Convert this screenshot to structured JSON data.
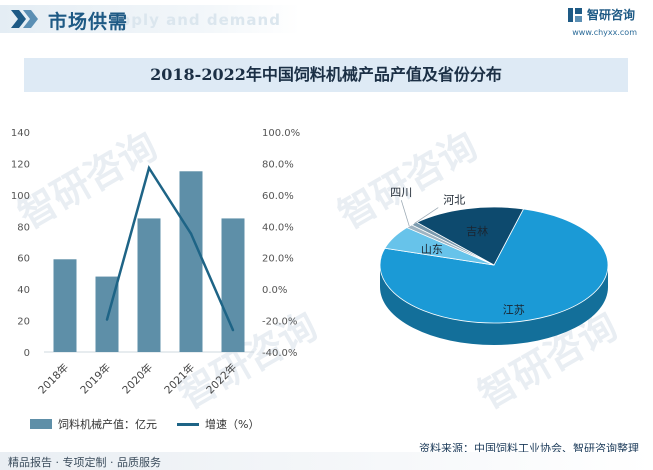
{
  "header": {
    "title": "市场供需",
    "ghost_text": "Supply and demand",
    "brand_name": "智研咨询",
    "brand_url": "www.chyxx.com"
  },
  "chart_title": "2018-2022年中国饲料机械产品产值及省份分布",
  "chart_data": [
    {
      "type": "bar",
      "title": "2018-2022年中国饲料机械产品产值",
      "categories": [
        "2018年",
        "2019年",
        "2020年",
        "2021年",
        "2022年"
      ],
      "series": [
        {
          "name": "饲料机械产值：亿元",
          "kind": "bar",
          "axis": "left",
          "values": [
            59,
            48,
            85,
            115,
            85
          ]
        },
        {
          "name": "增速（%）",
          "kind": "line",
          "axis": "right",
          "values": [
            null,
            -19.4,
            77.1,
            35.3,
            -26.1
          ]
        }
      ],
      "left_axis": {
        "min": 0,
        "max": 140,
        "ticks": [
          "0",
          "20",
          "40",
          "60",
          "80",
          "100",
          "120",
          "140"
        ]
      },
      "right_axis": {
        "min": -40,
        "max": 100,
        "ticks": [
          "-40.0%",
          "-20.0%",
          "0.0%",
          "20.0%",
          "40.0%",
          "60.0%",
          "80.0%",
          "100.0%"
        ]
      },
      "colors": {
        "bar": "#5e8fa8",
        "line": "#1e6486"
      }
    },
    {
      "type": "pie",
      "title": "省份分布",
      "labels": [
        "江苏",
        "山东",
        "四川",
        "河北",
        "吉林"
      ],
      "values": [
        75.5,
        6.5,
        1.0,
        1.0,
        16.0
      ],
      "colors": [
        "#1b9ad6",
        "#67c3ea",
        "#9fb4c2",
        "#7a9aae",
        "#0d4a6e"
      ]
    }
  ],
  "legend": {
    "bar_label": "饲料机械产值：亿元",
    "line_label": "增速（%）"
  },
  "source": "资料来源：中国饲料工业协会、智研咨询整理",
  "footer": "精品报告 · 专项定制 · 品质服务",
  "watermark": "智研咨询"
}
